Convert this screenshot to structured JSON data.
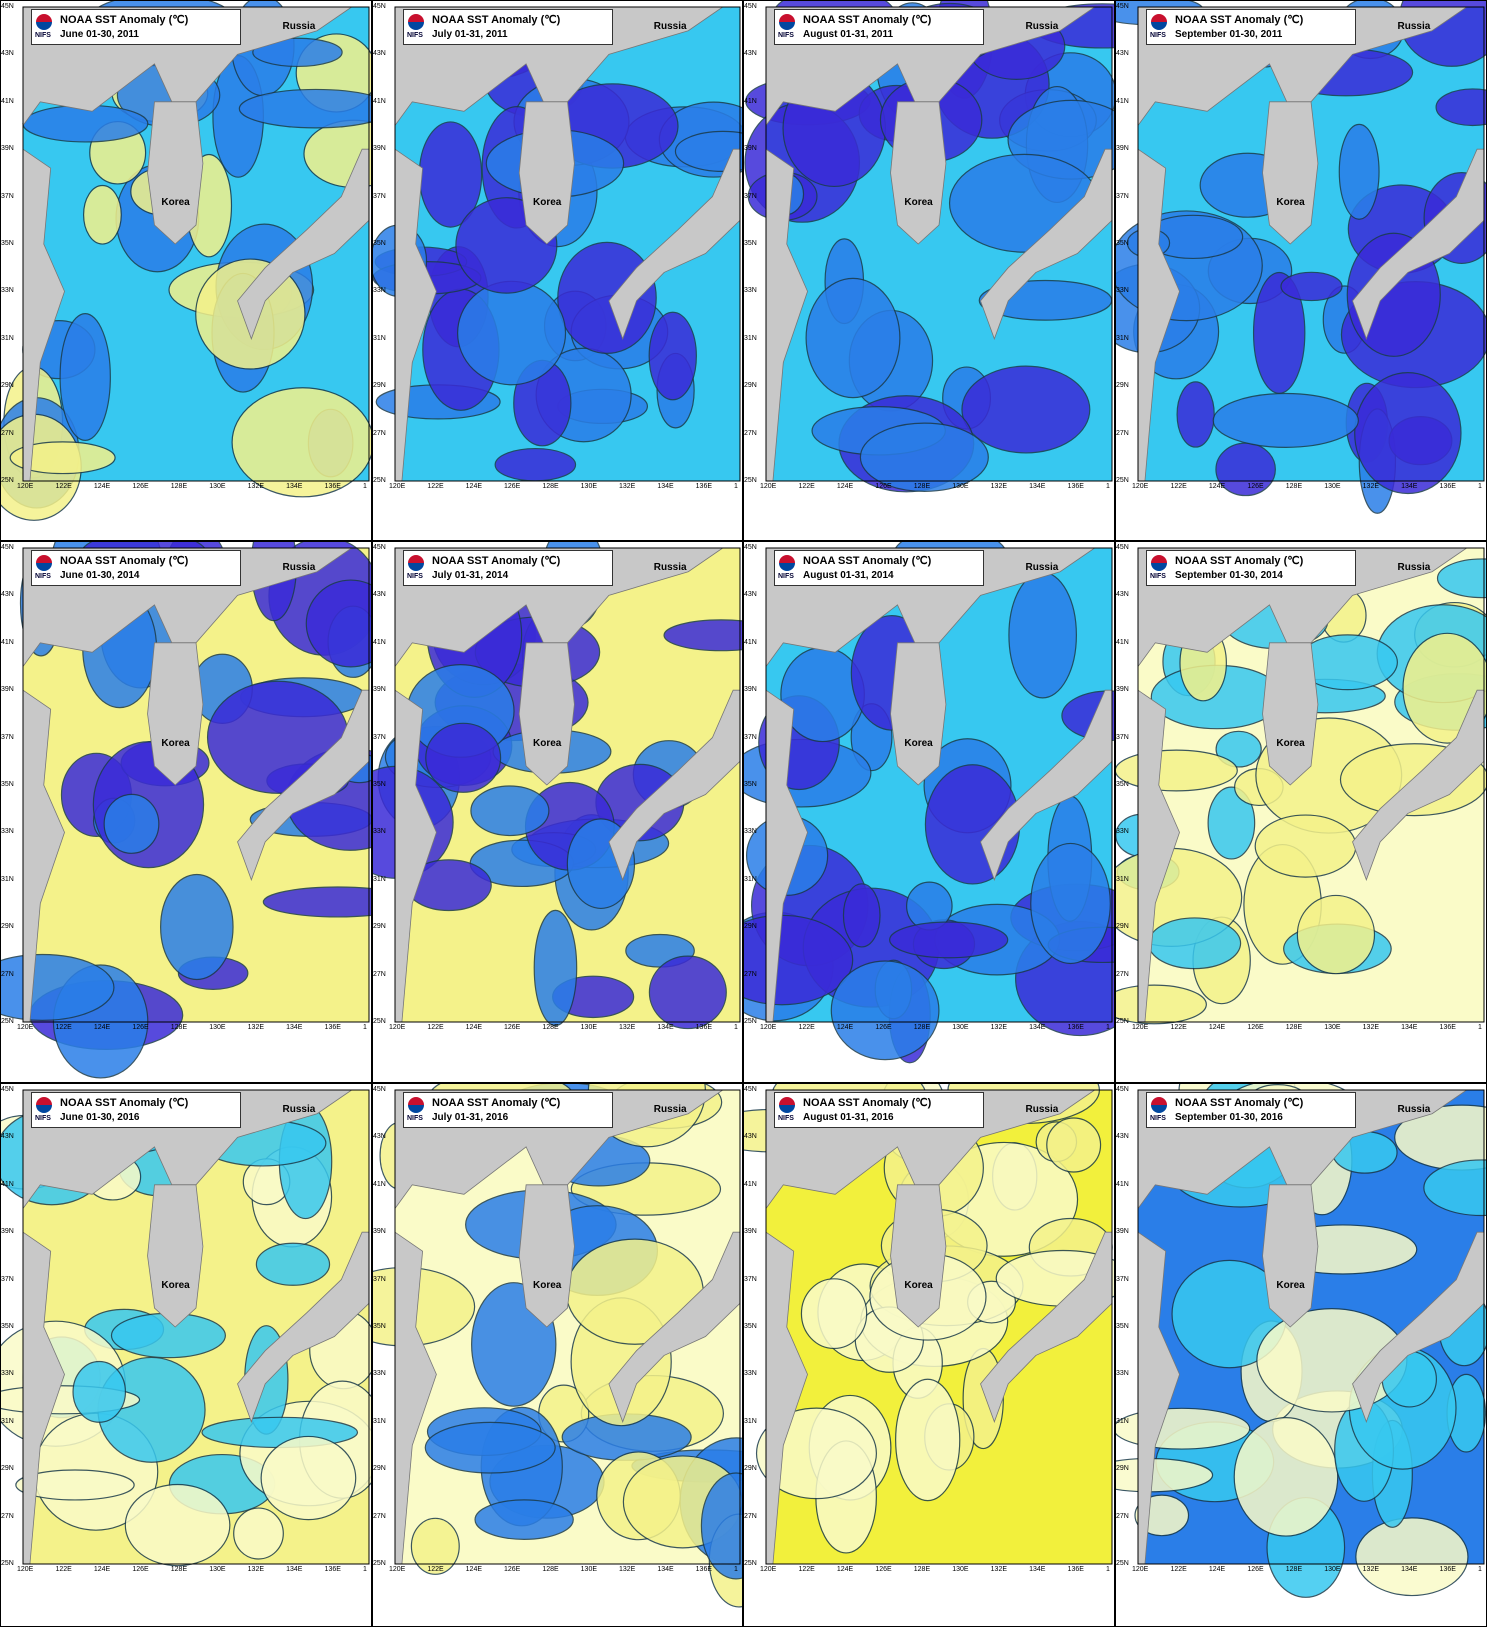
{
  "figure": {
    "rows": 3,
    "cols": 4,
    "colors": {
      "land": "#c8c8c8",
      "deep_blue": "#3a2bd8",
      "blue": "#2a7ee8",
      "light_blue": "#37c8f0",
      "cyan": "#28e6f7",
      "pale_yellow": "#fafbc8",
      "yellow": "#f4f28a",
      "bright_yellow": "#f2f03c"
    },
    "lat_ticks": [
      "45N",
      "43N",
      "41N",
      "39N",
      "37N",
      "35N",
      "33N",
      "31N",
      "29N",
      "27N",
      "25N"
    ],
    "lon_ticks": [
      "120E",
      "122E",
      "124E",
      "126E",
      "128E",
      "130E",
      "132E",
      "134E",
      "136E",
      "1"
    ]
  },
  "panels": [
    {
      "title": "NOAA SST Anomaly (℃)",
      "logo_text": "NIFS",
      "date": "June 01-30, 2011",
      "korea": "Korea",
      "russia": "Russia",
      "dominant": "mixed_blue_yellow"
    },
    {
      "title": "NOAA SST Anomaly (℃)",
      "logo_text": "NIFS",
      "date": "July 01-31, 2011",
      "korea": "Korea",
      "russia": "Russia",
      "dominant": "blue"
    },
    {
      "title": "NOAA SST Anomaly (℃)",
      "logo_text": "NIFS",
      "date": "August 01-31, 2011",
      "korea": "Korea",
      "russia": "Russia",
      "dominant": "blue"
    },
    {
      "title": "NOAA SST Anomaly (℃)",
      "logo_text": "NIFS",
      "date": "September 01-30, 2011",
      "korea": "Korea",
      "russia": "Russia",
      "dominant": "blue"
    },
    {
      "title": "NOAA SST Anomaly (℃)",
      "logo_text": "NIFS",
      "date": "June 01-30, 2014",
      "korea": "Korea",
      "russia": "Russia",
      "dominant": "yellow_north_blue_south"
    },
    {
      "title": "NOAA SST Anomaly (℃)",
      "logo_text": "NIFS",
      "date": "July 01-31, 2014",
      "korea": "Korea",
      "russia": "Russia",
      "dominant": "yellow_north_blue_south"
    },
    {
      "title": "NOAA SST Anomaly (℃)",
      "logo_text": "NIFS",
      "date": "August 01-31, 2014",
      "korea": "Korea",
      "russia": "Russia",
      "dominant": "blue"
    },
    {
      "title": "NOAA SST Anomaly (℃)",
      "logo_text": "NIFS",
      "date": "September 01-30, 2014",
      "korea": "Korea",
      "russia": "Russia",
      "dominant": "mixed_pale"
    },
    {
      "title": "NOAA SST Anomaly (℃)",
      "logo_text": "NIFS",
      "date": "June 01-30, 2016",
      "korea": "Korea",
      "russia": "Russia",
      "dominant": "yellow"
    },
    {
      "title": "NOAA SST Anomaly (℃)",
      "logo_text": "NIFS",
      "date": "July 01-31, 2016",
      "korea": "Korea",
      "russia": "Russia",
      "dominant": "pale_yellow_blue_north"
    },
    {
      "title": "NOAA SST Anomaly (℃)",
      "logo_text": "NIFS",
      "date": "August 01-31, 2016",
      "korea": "Korea",
      "russia": "Russia",
      "dominant": "bright_yellow"
    },
    {
      "title": "NOAA SST Anomaly (℃)",
      "logo_text": "NIFS",
      "date": "September 01-30, 2016",
      "korea": "Korea",
      "russia": "Russia",
      "dominant": "blue_with_yellow"
    }
  ]
}
